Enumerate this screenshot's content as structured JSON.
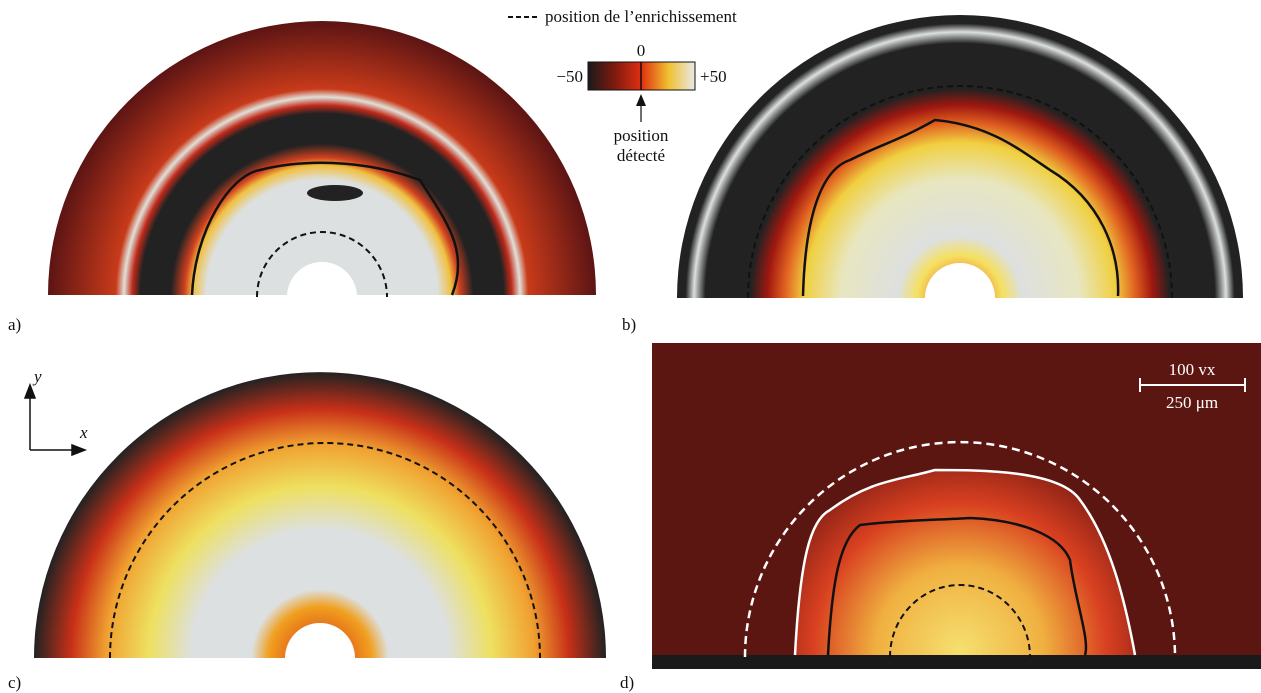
{
  "legend": {
    "dashed_label": "position de l’enrichissement"
  },
  "colorbar": {
    "min_label": "−50",
    "zero_label": "0",
    "max_label": "+50",
    "arrow_label_1": "position",
    "arrow_label_2": "détecté"
  },
  "panels": [
    {
      "label": "a)"
    },
    {
      "label": "b)"
    },
    {
      "label": "c)"
    },
    {
      "label": "d)"
    }
  ],
  "axes": {
    "x": "x",
    "y": "y"
  },
  "scale_bar": {
    "top": "100 vx",
    "bottom": "250 μm"
  }
}
